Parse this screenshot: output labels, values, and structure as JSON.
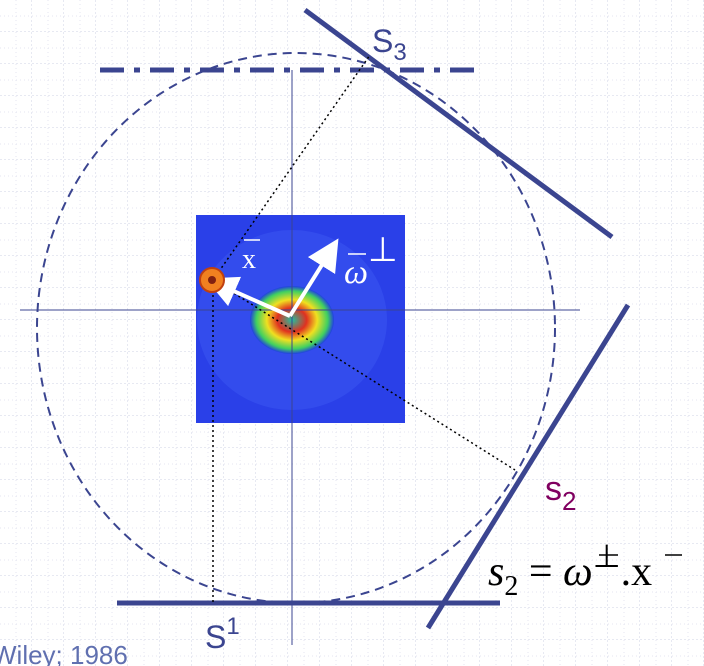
{
  "labels": {
    "s3": {
      "main": "S",
      "sub": "3"
    },
    "s2": {
      "main": "s",
      "sub": "2"
    },
    "s1": {
      "main": "S",
      "sub": "1"
    },
    "x_vector": "x",
    "omega": {
      "symbol": "ω",
      "sup": "⊥"
    },
    "formula": {
      "lhs": "s",
      "lhs_sub": "2",
      "eq": " = ",
      "omega": "ω",
      "sup": "⊥",
      "dot": ".",
      "x": "x"
    },
    "citation": "Wiley; 1986"
  }
}
